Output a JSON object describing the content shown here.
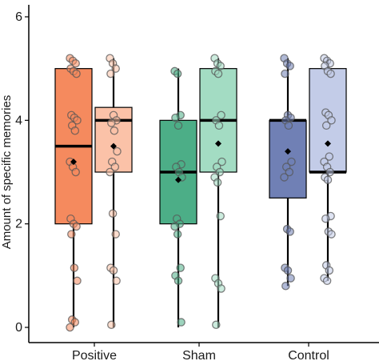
{
  "chart_data": {
    "type": "box",
    "title": "",
    "xlabel": "",
    "ylabel": "Amount of specific memories",
    "ylim": [
      0,
      6.2
    ],
    "yticks": [
      0,
      2,
      4,
      6
    ],
    "grid": false,
    "legend": "none",
    "categories": [
      "Positive",
      "Sham",
      "Control"
    ],
    "boxes": [
      {
        "category": "Positive",
        "color": "#f58a5e",
        "q1": 2,
        "median": 3.5,
        "q3": 5,
        "min": 0,
        "max": 5,
        "mean": 3.2,
        "points": [
          5.2,
          5.15,
          5.1,
          5.0,
          4.95,
          4.9,
          4.1,
          4.05,
          4.0,
          3.9,
          3.8,
          3.2,
          3.1,
          3.0,
          2.1,
          2.0,
          1.95,
          1.8,
          1.15,
          0.9,
          0.15,
          0.1,
          0.0
        ]
      },
      {
        "category": "Positive",
        "color": "#fbc2a8",
        "q1": 3,
        "median": 4,
        "q3": 4.25,
        "min": 0,
        "max": 5.2,
        "mean": 3.5,
        "points": [
          5.2,
          5.1,
          5.0,
          4.9,
          4.1,
          4.0,
          3.95,
          3.8,
          3.4,
          3.2,
          3.1,
          3.0,
          2.2,
          1.8,
          1.15,
          1.1,
          0.9,
          0.05
        ]
      },
      {
        "category": "Sham",
        "color": "#4cae87",
        "q1": 2,
        "median": 3,
        "q3": 4,
        "min": 0,
        "max": 5,
        "mean": 2.85,
        "points": [
          4.95,
          4.9,
          4.1,
          4.05,
          3.9,
          3.15,
          3.1,
          3.0,
          2.9,
          2.1,
          2.0,
          1.95,
          1.8,
          1.15,
          1.0,
          0.9,
          0.1
        ]
      },
      {
        "category": "Sham",
        "color": "#a3dcc3",
        "q1": 3,
        "median": 4,
        "q3": 5,
        "min": 0,
        "max": 5.2,
        "mean": 3.55,
        "points": [
          5.2,
          5.1,
          5.05,
          4.95,
          4.9,
          4.1,
          4.0,
          3.9,
          3.2,
          3.1,
          3.0,
          2.9,
          2.8,
          2.15,
          0.95,
          0.85,
          0.75,
          0.05
        ]
      },
      {
        "category": "Control",
        "color": "#7080b5",
        "q1": 2.5,
        "median": 4,
        "q3": 4,
        "min": 0.8,
        "max": 5.2,
        "mean": 3.4,
        "points": [
          5.2,
          5.1,
          5.05,
          4.9,
          4.1,
          4.05,
          4.0,
          3.9,
          3.2,
          3.1,
          3.0,
          2.9,
          1.9,
          1.85,
          1.15,
          1.1,
          0.95,
          0.8
        ]
      },
      {
        "category": "Control",
        "color": "#c3cce8",
        "q1": 3,
        "median": 3,
        "q3": 5,
        "min": 0.9,
        "max": 5.2,
        "mean": 3.55,
        "points": [
          5.2,
          5.15,
          5.1,
          5.05,
          4.95,
          4.9,
          4.15,
          4.1,
          4.0,
          3.9,
          3.3,
          3.2,
          3.1,
          3.0,
          2.9,
          2.85,
          2.15,
          2.1,
          1.85,
          1.8,
          1.2,
          1.1,
          0.95,
          0.9
        ]
      }
    ]
  }
}
